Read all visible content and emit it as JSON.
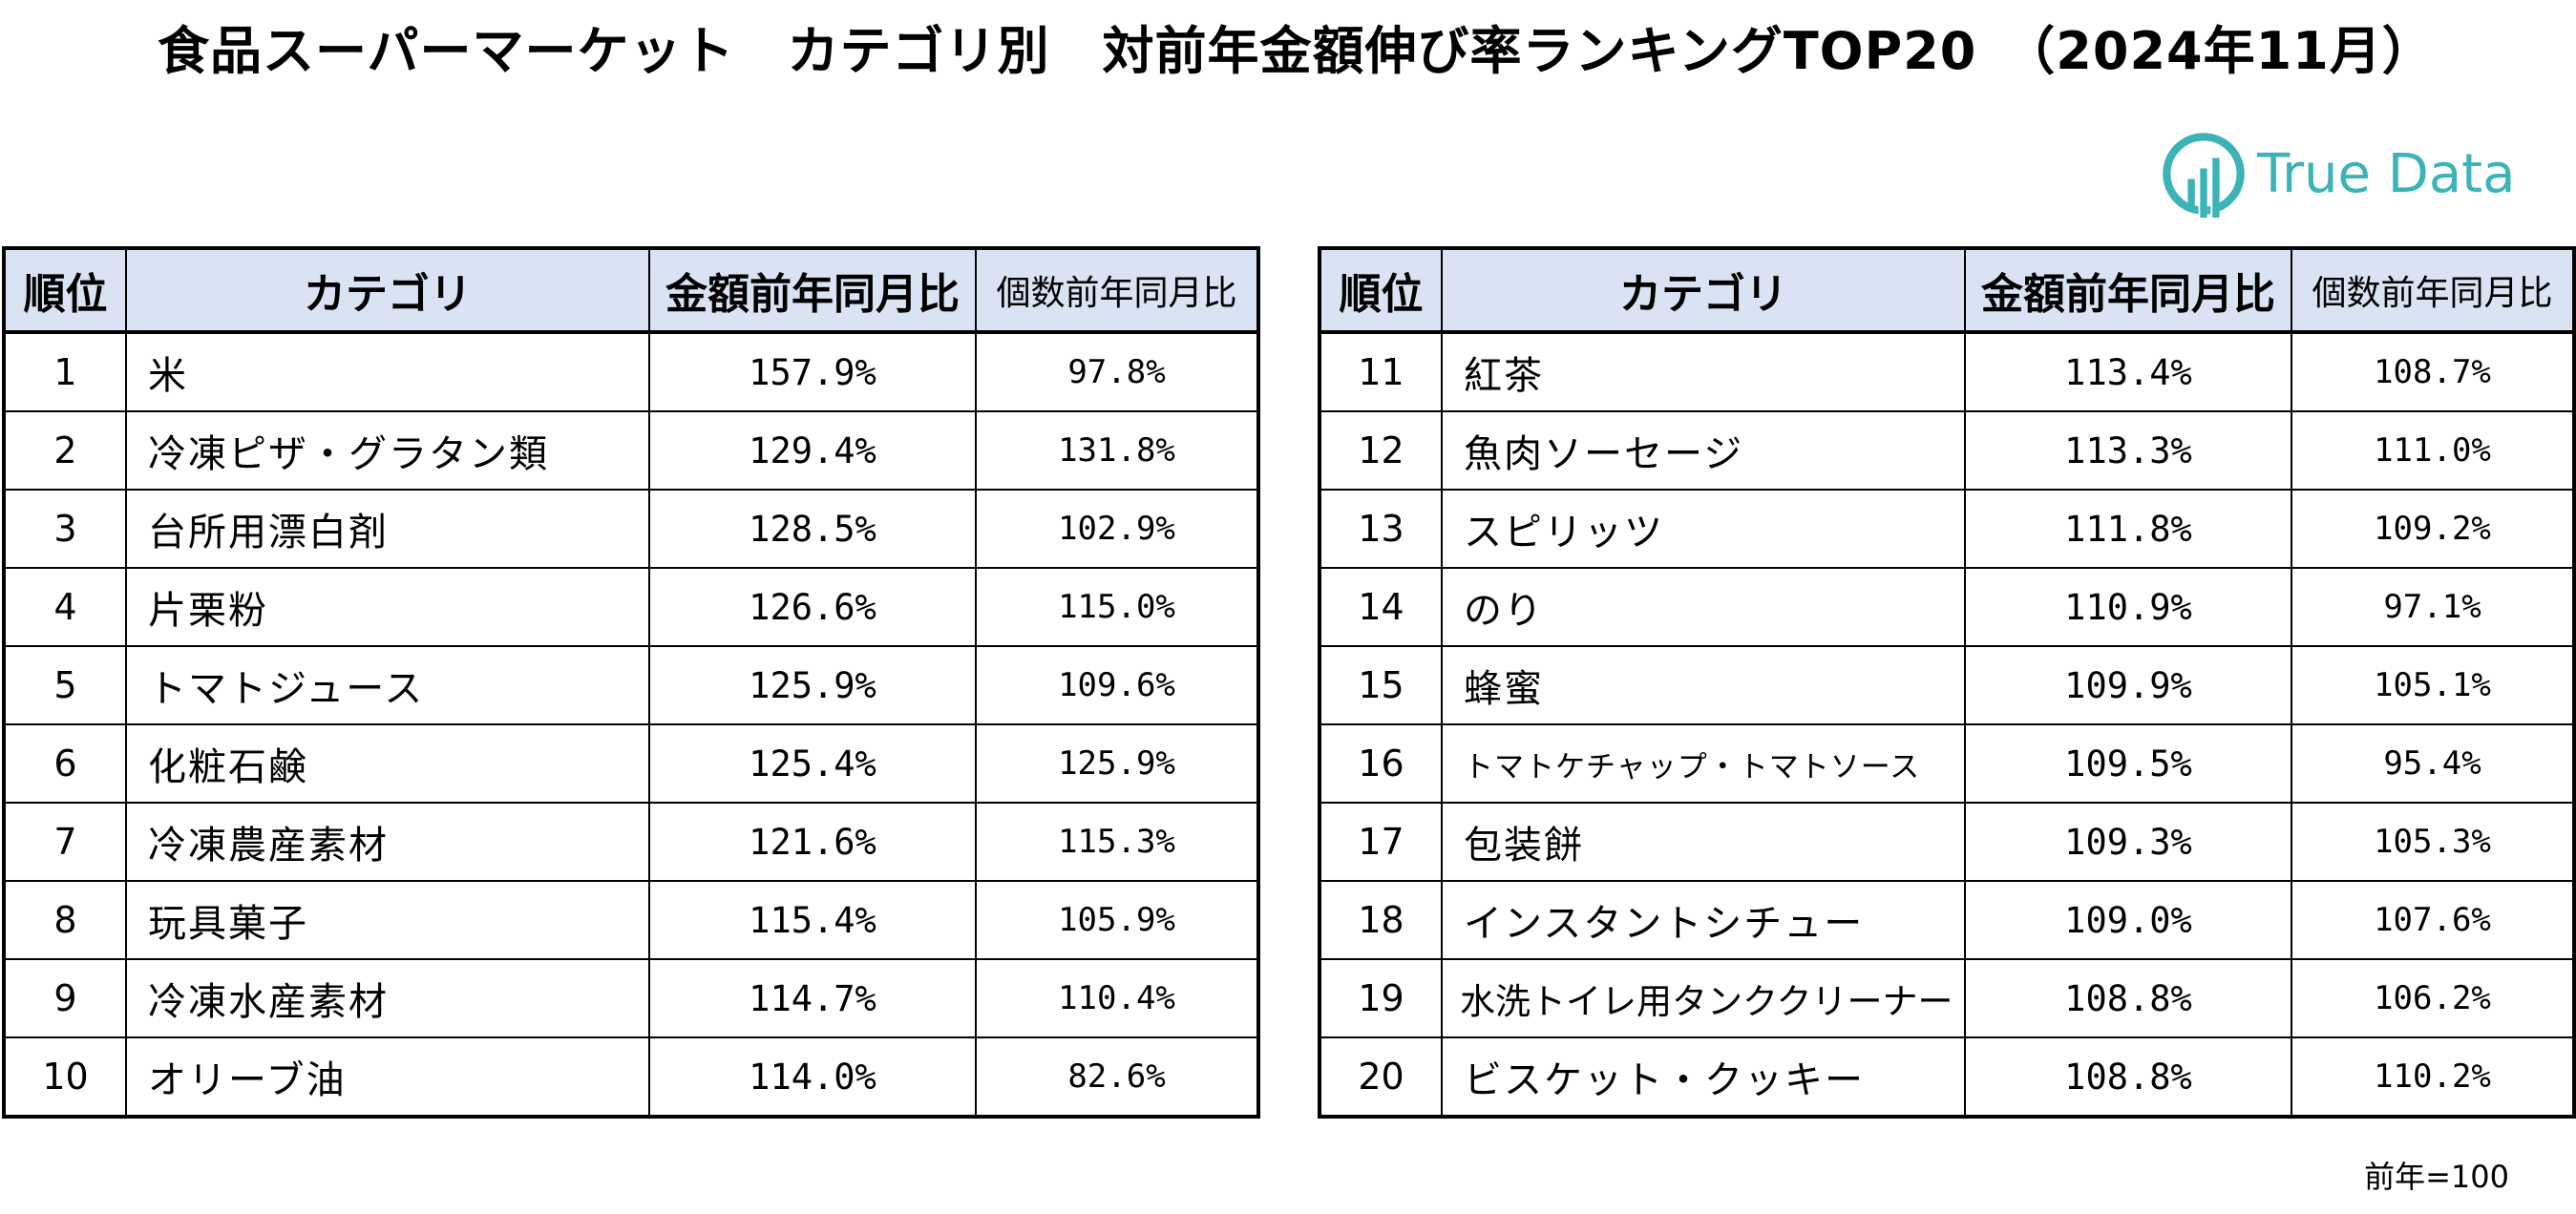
{
  "title": "食品スーパーマーケット　カテゴリ別　対前年金額伸び率ランキングTOP20　（2024年11月）",
  "logo": {
    "text": "True Data",
    "icon": "truedata-logo-icon",
    "color": "#3cb3b6"
  },
  "headers": {
    "rank": "順位",
    "category": "カテゴリ",
    "amount_yoy": "金額前年同月比",
    "count_yoy": "個数前年同月比"
  },
  "header_bg": "#dae3f3",
  "left_rows": [
    {
      "rank": "1",
      "category": "米",
      "amount": "157.9%",
      "count": "97.8%"
    },
    {
      "rank": "2",
      "category": "冷凍ピザ・グラタン類",
      "amount": "129.4%",
      "count": "131.8%"
    },
    {
      "rank": "3",
      "category": "台所用漂白剤",
      "amount": "128.5%",
      "count": "102.9%"
    },
    {
      "rank": "4",
      "category": "片栗粉",
      "amount": "126.6%",
      "count": "115.0%"
    },
    {
      "rank": "5",
      "category": "トマトジュース",
      "amount": "125.9%",
      "count": "109.6%"
    },
    {
      "rank": "6",
      "category": "化粧石鹸",
      "amount": "125.4%",
      "count": "125.9%"
    },
    {
      "rank": "7",
      "category": "冷凍農産素材",
      "amount": "121.6%",
      "count": "115.3%"
    },
    {
      "rank": "8",
      "category": "玩具菓子",
      "amount": "115.4%",
      "count": "105.9%"
    },
    {
      "rank": "9",
      "category": "冷凍水産素材",
      "amount": "114.7%",
      "count": "110.4%"
    },
    {
      "rank": "10",
      "category": "オリーブ油",
      "amount": "114.0%",
      "count": "82.6%"
    }
  ],
  "right_rows": [
    {
      "rank": "11",
      "category": "紅茶",
      "amount": "113.4%",
      "count": "108.7%"
    },
    {
      "rank": "12",
      "category": "魚肉ソーセージ",
      "amount": "113.3%",
      "count": "111.0%"
    },
    {
      "rank": "13",
      "category": "スピリッツ",
      "amount": "111.8%",
      "count": "109.2%"
    },
    {
      "rank": "14",
      "category": "のり",
      "amount": "110.9%",
      "count": "97.1%"
    },
    {
      "rank": "15",
      "category": "蜂蜜",
      "amount": "109.9%",
      "count": "105.1%"
    },
    {
      "rank": "16",
      "category": "トマトケチャップ・トマトソース",
      "amount": "109.5%",
      "count": "95.4%"
    },
    {
      "rank": "17",
      "category": "包装餅",
      "amount": "109.3%",
      "count": "105.3%"
    },
    {
      "rank": "18",
      "category": "インスタントシチュー",
      "amount": "109.0%",
      "count": "107.6%"
    },
    {
      "rank": "19",
      "category": "水洗トイレ用タンククリーナー",
      "amount": "108.8%",
      "count": "106.2%"
    },
    {
      "rank": "20",
      "category": "ビスケット・クッキー",
      "amount": "108.8%",
      "count": "110.2%"
    }
  ],
  "footnote": "前年=100"
}
